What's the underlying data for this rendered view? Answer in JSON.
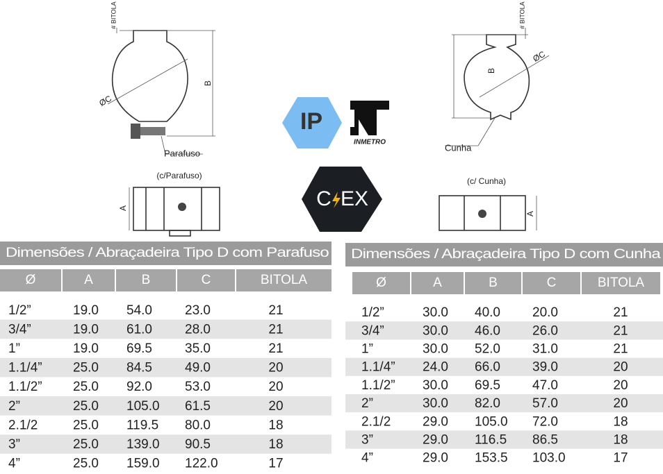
{
  "drawings": {
    "left": {
      "bitola": "# BITOLA",
      "b": "B",
      "c": "ØC",
      "screw": "Parafuso",
      "caption": "(c/Parafuso)",
      "a": "A"
    },
    "right": {
      "bitola": "# BITOLA",
      "c": "ØC",
      "b": "B",
      "wedge": "Cunha",
      "caption": "(c/ Cunha)",
      "a": "A"
    }
  },
  "logos": {
    "ip": "IP",
    "inmetro": "INMETRO",
    "cex": [
      "C",
      "EX"
    ]
  },
  "tables": [
    {
      "title": "Dimensões / Abraçadeira Tipo D com Parafuso",
      "headers": [
        "Ø",
        "A",
        "B",
        "C",
        "BITOLA"
      ],
      "rows": [
        [
          "1/2”",
          "19.0",
          "54.0",
          "23.0",
          "21"
        ],
        [
          "3/4”",
          "19.0",
          "61.0",
          "28.0",
          "21"
        ],
        [
          "1”",
          "19.0",
          "69.5",
          "35.0",
          "21"
        ],
        [
          "1.1/4”",
          "25.0",
          "84.5",
          "49.0",
          "20"
        ],
        [
          "1.1/2”",
          "25.0",
          "92.0",
          "53.0",
          "20"
        ],
        [
          "2”",
          "25.0",
          "105.0",
          "61.5",
          "20"
        ],
        [
          "2.1/2",
          "25.0",
          "119.5",
          "80.0",
          "18"
        ],
        [
          "3”",
          "25.0",
          "139.0",
          "90.5",
          "18"
        ],
        [
          "4”",
          "25.0",
          "159.0",
          "122.0",
          "17"
        ]
      ]
    },
    {
      "title": "Dimensões / Abraçadeira Tipo D com Cunha",
      "headers": [
        "Ø",
        "A",
        "B",
        "C",
        "BITOLA"
      ],
      "rows": [
        [
          "1/2”",
          "30.0",
          "40.0",
          "20.0",
          "21"
        ],
        [
          "3/4”",
          "30.0",
          "46.0",
          "26.0",
          "21"
        ],
        [
          "1”",
          "30.0",
          "52.0",
          "31.0",
          "21"
        ],
        [
          "1.1/4”",
          "24.0",
          "66.0",
          "39.0",
          "20"
        ],
        [
          "1.1/2”",
          "30.0",
          "69.5",
          "47.0",
          "20"
        ],
        [
          "2”",
          "30.0",
          "82.0",
          "57.0",
          "20"
        ],
        [
          "2.1/2",
          "29.0",
          "105.0",
          "72.0",
          "18"
        ],
        [
          "3”",
          "29.0",
          "116.5",
          "86.5",
          "18"
        ],
        [
          "4”",
          "29.0",
          "153.5",
          "103.0",
          "17"
        ]
      ]
    }
  ]
}
